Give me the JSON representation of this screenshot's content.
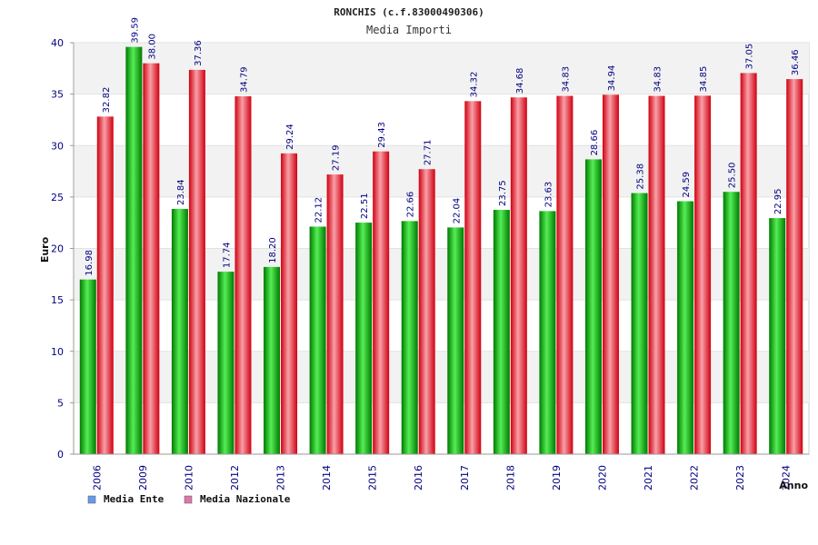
{
  "chart_data": {
    "type": "bar",
    "title": "RONCHIS (c.f.83000490306)",
    "subtitle": "Media Importi",
    "xlabel": "Anno",
    "ylabel": "Euro",
    "ylim": [
      0,
      40
    ],
    "yticks": [
      0,
      5,
      10,
      15,
      20,
      25,
      30,
      35,
      40
    ],
    "grid": true,
    "legend_position": "bottom-left",
    "categories": [
      "2006",
      "2009",
      "2010",
      "2012",
      "2013",
      "2014",
      "2015",
      "2016",
      "2017",
      "2018",
      "2019",
      "2020",
      "2021",
      "2022",
      "2023",
      "2024"
    ],
    "series": [
      {
        "name": "Media Ente",
        "color": "#00b000",
        "legend_color": "#6699ee",
        "values": [
          16.98,
          39.59,
          23.84,
          17.74,
          18.2,
          22.12,
          22.51,
          22.66,
          22.04,
          23.75,
          23.63,
          28.66,
          25.38,
          24.59,
          25.5,
          22.95
        ],
        "labels": [
          "16.98",
          "39.59",
          "23.84",
          "17.74",
          "18.20",
          "22.12",
          "22.51",
          "22.66",
          "22.04",
          "23.75",
          "23.63",
          "28.66",
          "25.38",
          "24.59",
          "25.50",
          "22.95"
        ]
      },
      {
        "name": "Media Nazionale",
        "color": "#e01020",
        "legend_color": "#dd77aa",
        "values": [
          32.82,
          38.0,
          37.36,
          34.79,
          29.24,
          27.19,
          29.43,
          27.71,
          34.32,
          34.68,
          34.83,
          34.94,
          34.83,
          34.85,
          37.05,
          36.46
        ],
        "labels": [
          "32.82",
          "38.00",
          "37.36",
          "34.79",
          "29.24",
          "27.19",
          "29.43",
          "27.71",
          "34.32",
          "34.68",
          "34.83",
          "34.94",
          "34.83",
          "34.85",
          "37.05",
          "36.46"
        ]
      }
    ]
  }
}
